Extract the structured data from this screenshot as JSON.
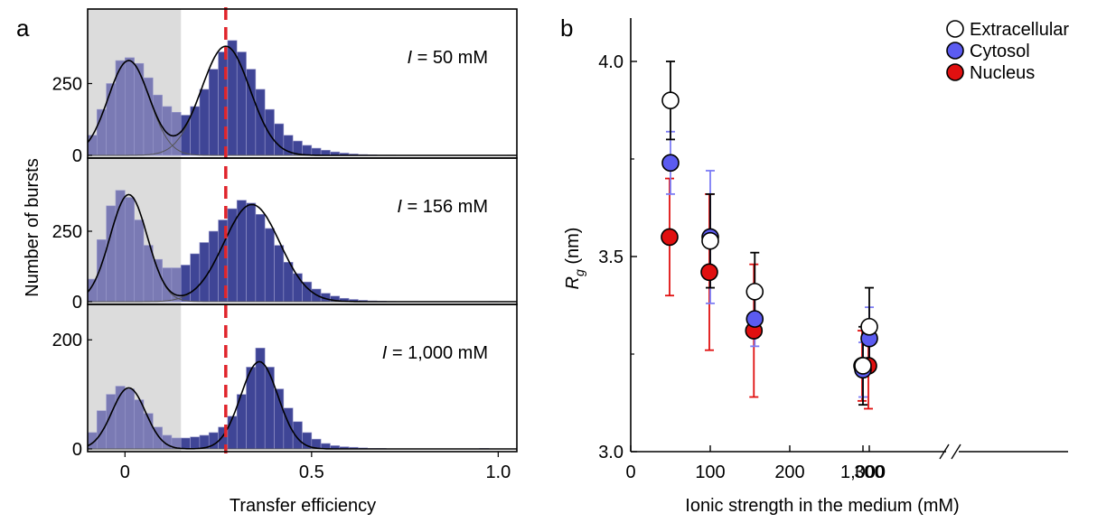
{
  "panel_a": {
    "letter": "a",
    "xlabel": "Transfer efficiency",
    "ylabel": "Number of bursts",
    "x_ticks": [
      "0",
      "0.5",
      "1.0"
    ],
    "shaded_region": [
      -0.1,
      0.15
    ],
    "reference_line_x": 0.27,
    "colors": {
      "shaded": "#dcdcdc",
      "donor_only_bars": "#7a7ab4",
      "fret_bars": "#3f4596",
      "reference_line": "#e0242b",
      "fit": "#000000"
    }
  },
  "panel_b": {
    "letter": "b",
    "xlabel": "Ionic strength in the medium (mM)",
    "ylabel_main": "R",
    "ylabel_sub": "g",
    "ylabel_unit": " (nm)",
    "x_ticks": [
      "0",
      "100",
      "200",
      "300",
      "1,000"
    ],
    "y_ticks": [
      "3.0",
      "3.5",
      "4.0"
    ],
    "legend": [
      {
        "label": "Extracellular",
        "color": "#ffffff"
      },
      {
        "label": "Cytosol",
        "color": "#5b5bf0"
      },
      {
        "label": "Nucleus",
        "color": "#e01010"
      }
    ]
  },
  "chart_data": [
    {
      "type": "bar",
      "panel": "a",
      "xlabel": "Transfer efficiency",
      "ylabel": "Number of bursts",
      "xlim": [
        -0.1,
        1.05
      ],
      "x_ticks": [
        0,
        0.5,
        1.0
      ],
      "bin_width": 0.025,
      "reference_line_x": 0.27,
      "shaded_region": [
        -0.1,
        0.15
      ],
      "subplots": [
        {
          "annotation_prefix": "I",
          "annotation_value": " = 50 mM",
          "ylim": [
            0,
            500
          ],
          "y_ticks": [
            0,
            250
          ],
          "bins_start": -0.1,
          "counts": [
            70,
            160,
            250,
            330,
            340,
            320,
            270,
            210,
            170,
            150,
            140,
            170,
            230,
            300,
            360,
            400,
            360,
            300,
            230,
            160,
            110,
            70,
            50,
            35,
            25,
            18,
            12,
            8,
            5,
            3,
            2,
            1,
            1,
            0,
            0,
            0,
            0,
            0,
            0,
            0,
            0,
            0,
            0,
            0,
            0,
            1
          ],
          "fits": [
            {
              "mu": 0.01,
              "sigma": 0.055,
              "amp": 330
            },
            {
              "mu": 0.27,
              "sigma": 0.065,
              "amp": 380
            }
          ]
        },
        {
          "annotation_prefix": "I",
          "annotation_value": " = 156 mM",
          "ylim": [
            0,
            500
          ],
          "y_ticks": [
            0,
            250
          ],
          "bins_start": -0.1,
          "counts": [
            80,
            220,
            340,
            395,
            370,
            290,
            200,
            150,
            120,
            120,
            130,
            170,
            210,
            250,
            290,
            330,
            360,
            350,
            310,
            260,
            200,
            140,
            100,
            70,
            45,
            30,
            20,
            12,
            8,
            5,
            3,
            2,
            1,
            0,
            0,
            0,
            0,
            0,
            0,
            0,
            0,
            0,
            0,
            1,
            0,
            0
          ],
          "fits": [
            {
              "mu": 0.01,
              "sigma": 0.05,
              "amp": 380
            },
            {
              "mu": 0.34,
              "sigma": 0.075,
              "amp": 345
            }
          ]
        },
        {
          "annotation_prefix": "I",
          "annotation_value": " = 1,000 mM",
          "ylim": [
            0,
            260
          ],
          "y_ticks": [
            0,
            200
          ],
          "bins_start": -0.1,
          "counts": [
            30,
            70,
            100,
            115,
            110,
            90,
            65,
            40,
            25,
            20,
            20,
            22,
            25,
            30,
            40,
            60,
            100,
            150,
            185,
            150,
            110,
            75,
            50,
            30,
            18,
            10,
            6,
            4,
            3,
            2,
            1,
            1,
            0,
            0,
            0,
            0,
            0,
            0,
            0,
            0,
            0,
            0,
            1,
            0,
            0,
            0
          ],
          "fits": [
            {
              "mu": 0.01,
              "sigma": 0.045,
              "amp": 112
            },
            {
              "mu": 0.36,
              "sigma": 0.05,
              "amp": 160
            }
          ]
        }
      ]
    },
    {
      "type": "scatter",
      "panel": "b",
      "xlabel": "Ionic strength in the medium (mM)",
      "ylabel": "Rg (nm)",
      "ylim": [
        3.0,
        4.1
      ],
      "y_ticks": [
        3.0,
        3.5,
        4.0
      ],
      "x_ticks": [
        0,
        100,
        200,
        300,
        1000
      ],
      "axis_break": "between 300 and 1000",
      "legend_position": "top-right",
      "series": [
        {
          "name": "Extracellular",
          "color": "#ffffff",
          "x": [
            50,
            100,
            156,
            300,
            1000
          ],
          "y": [
            3.9,
            3.54,
            3.41,
            3.32,
            3.22
          ],
          "err": [
            0.1,
            0.12,
            0.1,
            0.1,
            0.1
          ]
        },
        {
          "name": "Cytosol",
          "color": "#5b5bf0",
          "x": [
            50,
            100,
            156,
            300,
            1000
          ],
          "y": [
            3.74,
            3.55,
            3.34,
            3.29,
            3.21
          ],
          "err": [
            0.08,
            0.17,
            0.07,
            0.08,
            0.07
          ]
        },
        {
          "name": "Nucleus",
          "color": "#e01010",
          "x": [
            50,
            100,
            156,
            300,
            1000
          ],
          "y": [
            3.55,
            3.46,
            3.31,
            3.22,
            3.22
          ],
          "err": [
            0.15,
            0.2,
            0.17,
            0.11,
            0.09
          ]
        }
      ]
    }
  ]
}
